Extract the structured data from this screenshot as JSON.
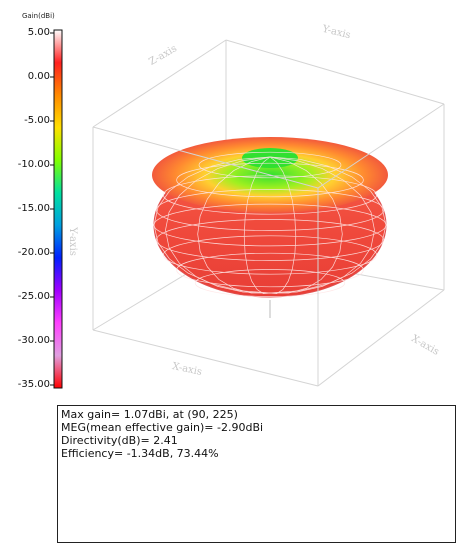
{
  "colorbar": {
    "title": "Gain(dBi)",
    "min": -35,
    "max": 5,
    "ticks": [
      "5.00",
      "0.00",
      "-5.00",
      "-10.00",
      "-15.00",
      "-20.00",
      "-25.00",
      "-30.00",
      "-35.00"
    ],
    "stops": [
      "#ffffff",
      "#ff2020",
      "#ff8a00",
      "#ffe000",
      "#80ff00",
      "#00e0a0",
      "#00a0e0",
      "#0020ff",
      "#a000ff",
      "#ff40ff",
      "#e0a0e0",
      "#ff0000"
    ]
  },
  "axes": {
    "x_label": "X-axis",
    "y_label": "Y-axis",
    "z_label": "Z-axis",
    "y_label_side": "Y-axis",
    "x_label_side": "X-axis"
  },
  "pattern": {
    "body_color": "#f04a3c",
    "top_color": "#ff9a30",
    "center_color": "#40e040",
    "grid_color": "#ffe0e0"
  },
  "info": {
    "max_gain": "Max gain= 1.07dBi, at (90, 225)",
    "meg": "MEG(mean effective gain)= -2.90dBi",
    "directivity": "Directivity(dB)= 2.41",
    "efficiency": "Efficiency= -1.34dB, 73.44%"
  },
  "chart_data": {
    "type": "3d-radiation-pattern",
    "title": "",
    "colorbar_label": "Gain(dBi)",
    "colorbar_range": [
      -35,
      5
    ],
    "colorbar_ticks": [
      5,
      0,
      -5,
      -10,
      -15,
      -20,
      -25,
      -30,
      -35
    ],
    "max_gain_dBi": 1.07,
    "max_gain_direction": [
      90,
      225
    ],
    "mean_effective_gain_dBi": -2.9,
    "directivity_dB": 2.41,
    "efficiency_dB": -1.34,
    "efficiency_percent": 73.44
  }
}
